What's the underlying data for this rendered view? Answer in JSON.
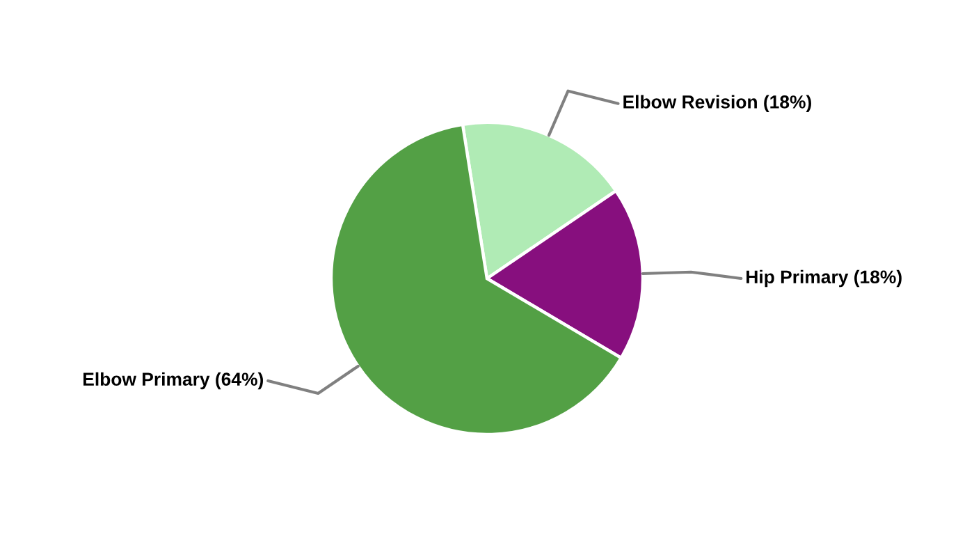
{
  "chart_data": {
    "type": "pie",
    "categories": [
      "Elbow Revision",
      "Hip Primary",
      "Elbow Primary"
    ],
    "values": [
      18,
      18,
      64
    ],
    "value_labels": [
      "(18%)",
      "(18%)",
      "(64%)"
    ],
    "colors": [
      "#b0ebb5",
      "#870f7e",
      "#53a045"
    ]
  }
}
